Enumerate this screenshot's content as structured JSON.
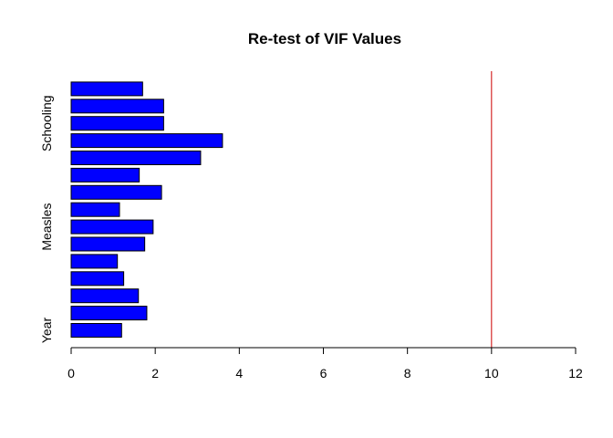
{
  "chart_data": {
    "type": "bar",
    "orientation": "horizontal",
    "title": "Re-test of VIF Values",
    "xlabel": "",
    "ylabel": "",
    "xlim": [
      0,
      12
    ],
    "x_ticks": [
      0,
      2,
      4,
      6,
      8,
      10,
      12
    ],
    "categories_shown": [
      "Year",
      "Measles",
      "Schooling"
    ],
    "values": [
      1.2,
      1.8,
      1.6,
      1.25,
      1.1,
      1.75,
      1.95,
      1.15,
      2.15,
      1.62,
      3.08,
      3.6,
      2.2,
      2.2,
      1.7
    ],
    "bar_color": "#0000ff",
    "bar_border_color": "#000000",
    "reference_line": {
      "x": 10,
      "color": "#cc0000"
    },
    "grid": false,
    "legend": "none"
  }
}
